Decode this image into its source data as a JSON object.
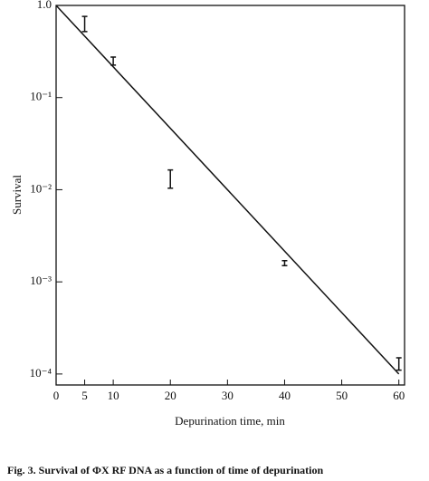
{
  "chart_data": {
    "type": "scatter",
    "xlabel": "Depurination time, min",
    "ylabel": "Survival",
    "caption": "Fig. 3. Survival of ΦX RF DNA as a function of time of depurination",
    "log_y": true,
    "color": "#111111",
    "xlim": [
      0,
      61
    ],
    "ylim": [
      7.6e-05,
      1
    ],
    "xticks": [
      0,
      5,
      10,
      20,
      30,
      40,
      50,
      60
    ],
    "yticks": [
      {
        "value": 1,
        "label": "1.0"
      },
      {
        "value": 0.1,
        "label": "10⁻¹"
      },
      {
        "value": 0.01,
        "label": "10⁻²"
      },
      {
        "value": 0.001,
        "label": "10⁻³"
      },
      {
        "value": 0.0001,
        "label": "10⁻⁴"
      }
    ],
    "x": [
      5,
      10,
      20,
      40,
      60
    ],
    "values": [
      0.64,
      0.25,
      0.0134,
      0.0016,
      0.00013
    ],
    "errors": [
      0.12,
      0.025,
      0.003,
      0.0001,
      2e-05
    ],
    "fit": {
      "x": [
        0,
        60
      ],
      "values": [
        1,
        0.0001
      ]
    }
  }
}
